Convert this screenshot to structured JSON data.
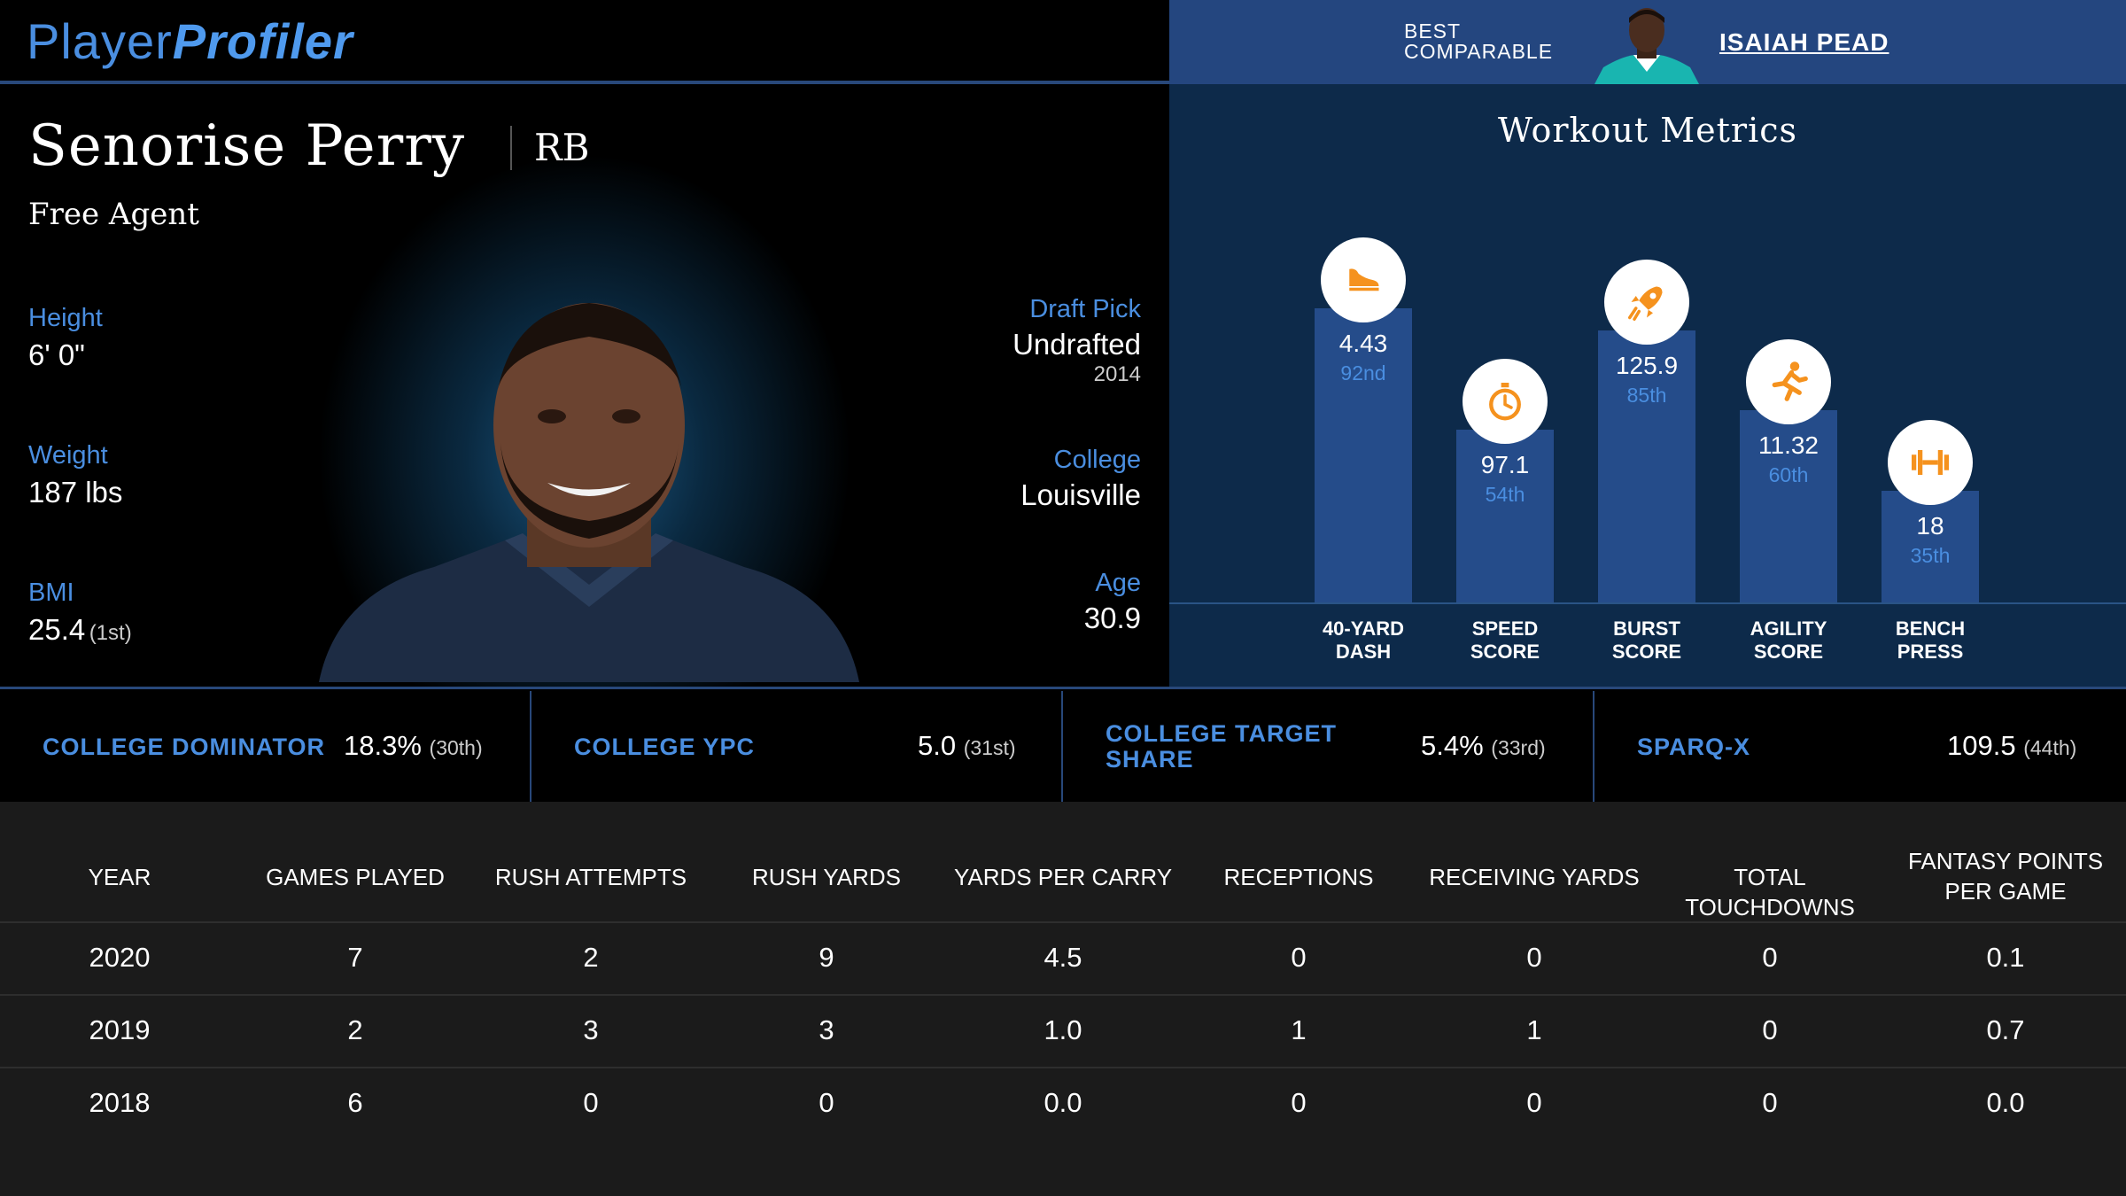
{
  "brand": {
    "logo_plain": "Player",
    "logo_accent": "Profiler"
  },
  "comparable": {
    "label_line1": "BEST",
    "label_line2": "COMPARABLE",
    "name": "ISAIAH PEAD"
  },
  "player": {
    "name": "Senorise Perry",
    "position": "RB",
    "team": "Free Agent",
    "height_label": "Height",
    "height": "6' 0\"",
    "weight_label": "Weight",
    "weight": "187 lbs",
    "bmi_label": "BMI",
    "bmi": "25.4",
    "bmi_rank": "(1st)",
    "draft_label": "Draft Pick",
    "draft": "Undrafted",
    "draft_year": "2014",
    "college_label": "College",
    "college": "Louisville",
    "age_label": "Age",
    "age": "30.9"
  },
  "workout": {
    "title": "Workout Metrics",
    "metrics": [
      {
        "value": "4.43",
        "pct": "92nd",
        "label1": "40-YARD",
        "label2": "DASH",
        "icon": "shoe-icon",
        "percentile": 92
      },
      {
        "value": "97.1",
        "pct": "54th",
        "label1": "SPEED",
        "label2": "SCORE",
        "icon": "stopwatch-icon",
        "percentile": 54
      },
      {
        "value": "125.9",
        "pct": "85th",
        "label1": "BURST",
        "label2": "SCORE",
        "icon": "rocket-icon",
        "percentile": 85
      },
      {
        "value": "11.32",
        "pct": "60th",
        "label1": "AGILITY",
        "label2": "SCORE",
        "icon": "runner-icon",
        "percentile": 60
      },
      {
        "value": "18",
        "pct": "35th",
        "label1": "BENCH",
        "label2": "PRESS",
        "icon": "dumbbell-icon",
        "percentile": 35
      }
    ],
    "accent": "#f5921e"
  },
  "college_metrics": [
    {
      "label1": "COLLEGE DOMINATOR",
      "label2": "",
      "value": "18.3%",
      "rank": "(30th)"
    },
    {
      "label1": "COLLEGE YPC",
      "label2": "",
      "value": "5.0",
      "rank": "(31st)"
    },
    {
      "label1": "COLLEGE TARGET",
      "label2": "SHARE",
      "value": "5.4%",
      "rank": "(33rd)"
    },
    {
      "label1": "SPARQ-X",
      "label2": "",
      "value": "109.5",
      "rank": "(44th)"
    }
  ],
  "table": {
    "headers": [
      "YEAR",
      "GAMES PLAYED",
      "RUSH ATTEMPTS",
      "RUSH YARDS",
      "YARDS PER CARRY",
      "RECEPTIONS",
      "RECEIVING YARDS",
      "TOTAL TOUCHDOWNS",
      "FANTASY POINTS PER GAME"
    ],
    "rows": [
      [
        "2020",
        "7",
        "2",
        "9",
        "4.5",
        "0",
        "0",
        "0",
        "0.1"
      ],
      [
        "2019",
        "2",
        "3",
        "3",
        "1.0",
        "1",
        "1",
        "0",
        "0.7"
      ],
      [
        "2018",
        "6",
        "0",
        "0",
        "0.0",
        "0",
        "0",
        "0",
        "0.0"
      ]
    ]
  }
}
